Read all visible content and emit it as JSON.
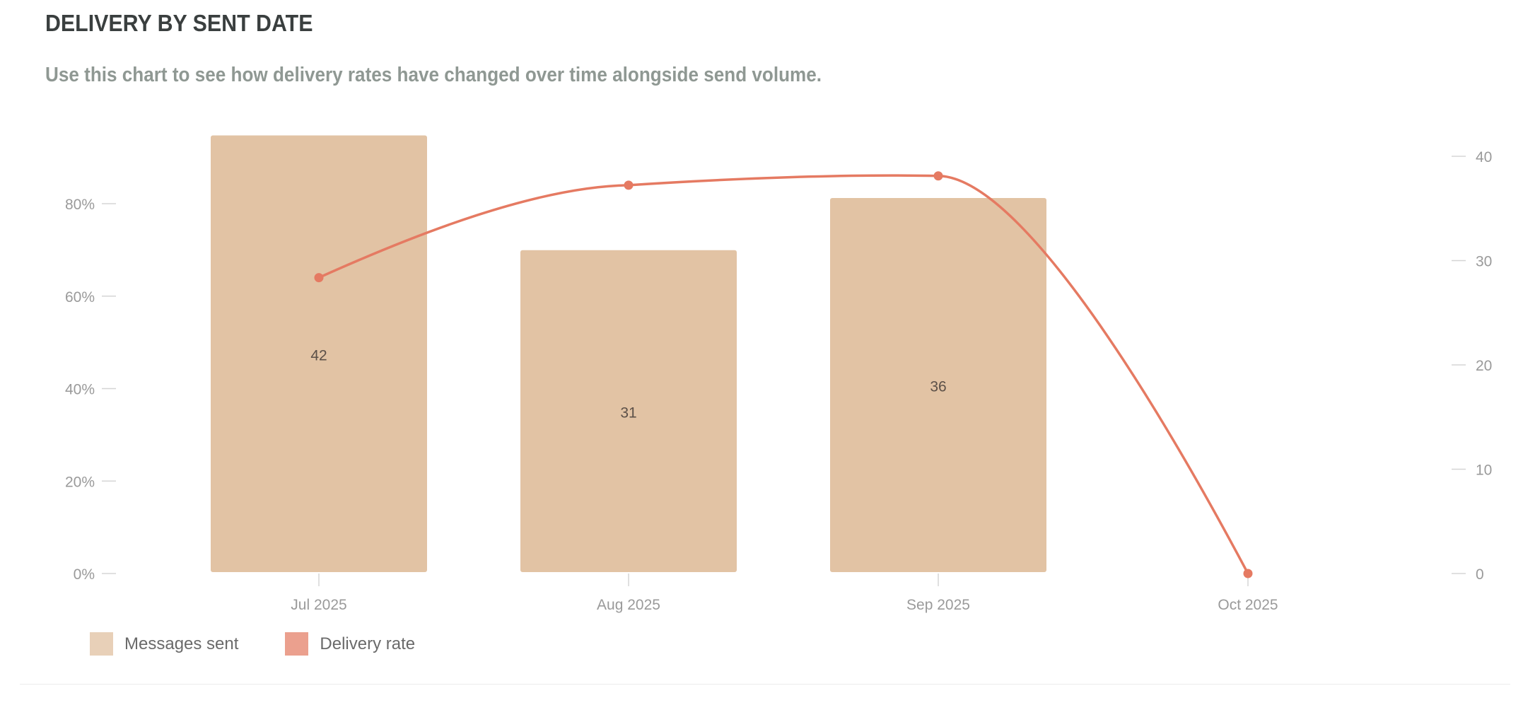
{
  "header": {
    "title": "DELIVERY BY SENT DATE",
    "subtitle": "Use this chart to see how delivery rates have changed over time alongside send volume."
  },
  "colors": {
    "bar": "#e2c3a4",
    "line": "#e57a62",
    "legend_bar": "#e8d0b8",
    "legend_line": "#eba08e"
  },
  "chart_data": {
    "type": "bar",
    "title": "DELIVERY BY SENT DATE",
    "categories": [
      "Jul 2025",
      "Aug 2025",
      "Sep 2025",
      "Oct 2025"
    ],
    "series": [
      {
        "name": "Messages sent",
        "type": "bar",
        "axis": "right",
        "values": [
          42,
          31,
          36,
          null
        ],
        "data_labels": [
          "42",
          "31",
          "36",
          ""
        ]
      },
      {
        "name": "Delivery rate",
        "type": "line",
        "axis": "left",
        "values": [
          64,
          84,
          86,
          0
        ]
      }
    ],
    "left_axis": {
      "ticks": [
        0,
        20,
        40,
        60,
        80
      ],
      "tick_labels": [
        "0%",
        "20%",
        "40%",
        "60%",
        "80%"
      ],
      "ylim": [
        0,
        100
      ]
    },
    "right_axis": {
      "ticks": [
        0,
        10,
        20,
        30,
        40
      ],
      "tick_labels": [
        "0",
        "10",
        "20",
        "30",
        "40"
      ],
      "ylim": [
        0,
        42
      ]
    },
    "grid": false,
    "legend": {
      "position": "bottom-left",
      "entries": [
        "Messages sent",
        "Delivery rate"
      ]
    }
  }
}
